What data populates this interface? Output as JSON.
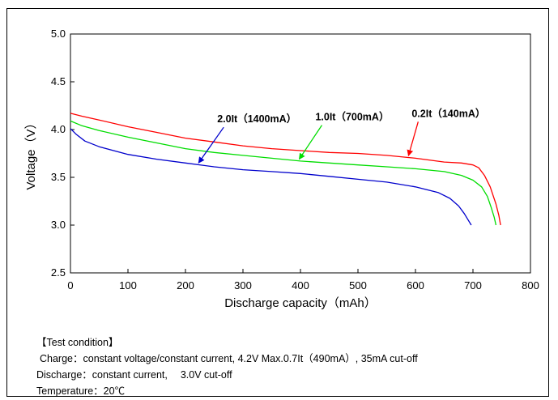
{
  "chart_data": {
    "type": "line",
    "title": "",
    "xlabel": "Discharge capacity（mAh）",
    "ylabel": "Voltage（V）",
    "xlim": [
      0,
      800
    ],
    "ylim": [
      2.5,
      5.0
    ],
    "xticks": [
      "0",
      "100",
      "200",
      "300",
      "400",
      "500",
      "600",
      "700",
      "800"
    ],
    "yticks": [
      "2.5",
      "3.0",
      "3.5",
      "4.0",
      "4.5",
      "5.0"
    ],
    "grid": false,
    "series": [
      {
        "name": "0.2It（140mA）",
        "color": "#ff0000",
        "x": [
          0,
          20,
          50,
          100,
          150,
          200,
          250,
          300,
          350,
          400,
          450,
          500,
          550,
          600,
          650,
          680,
          700,
          710,
          720,
          730,
          740,
          745,
          748
        ],
        "y": [
          4.17,
          4.14,
          4.1,
          4.03,
          3.97,
          3.91,
          3.87,
          3.83,
          3.8,
          3.78,
          3.76,
          3.75,
          3.73,
          3.7,
          3.66,
          3.65,
          3.63,
          3.6,
          3.52,
          3.4,
          3.22,
          3.1,
          3.0
        ]
      },
      {
        "name": "1.0It（700mA）",
        "color": "#00dd00",
        "x": [
          0,
          20,
          50,
          100,
          150,
          200,
          250,
          300,
          350,
          400,
          450,
          500,
          550,
          600,
          650,
          680,
          700,
          715,
          725,
          732,
          737,
          740
        ],
        "y": [
          4.09,
          4.04,
          3.99,
          3.92,
          3.86,
          3.8,
          3.76,
          3.73,
          3.7,
          3.67,
          3.65,
          3.63,
          3.61,
          3.59,
          3.56,
          3.52,
          3.47,
          3.4,
          3.3,
          3.18,
          3.08,
          3.0
        ]
      },
      {
        "name": "2.0It（1400mA）",
        "color": "#0000cc",
        "x": [
          0,
          10,
          25,
          50,
          100,
          150,
          200,
          250,
          300,
          350,
          400,
          450,
          500,
          550,
          600,
          640,
          660,
          675,
          685,
          692,
          697
        ],
        "y": [
          4.01,
          3.95,
          3.88,
          3.82,
          3.74,
          3.69,
          3.65,
          3.61,
          3.58,
          3.56,
          3.54,
          3.51,
          3.48,
          3.45,
          3.4,
          3.34,
          3.28,
          3.2,
          3.12,
          3.05,
          3.0
        ]
      }
    ],
    "annotations": [
      {
        "text": "2.0It（1400mA）",
        "series": 2,
        "color": "#0000cc",
        "at_x": 220
      },
      {
        "text": "1.0It（700mA）",
        "series": 1,
        "color": "#00dd00",
        "at_x": 395
      },
      {
        "text": "0.2It（140mA）",
        "series": 0,
        "color": "#ff0000",
        "at_x": 585
      }
    ]
  },
  "test_condition": {
    "heading": "【Test condition】",
    "charge": "Charge：constant voltage/constant current, 4.2V Max.0.7It（490mA）, 35mA cut-off",
    "discharge": "Discharge：constant current,　 3.0V cut-off",
    "temperature": "Temperature：20℃"
  }
}
